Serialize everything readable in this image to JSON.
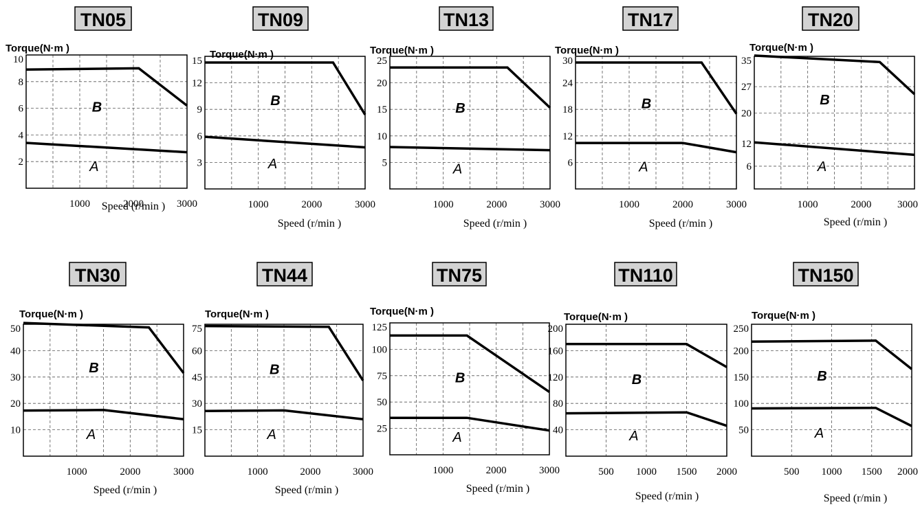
{
  "chart_data": [
    {
      "type": "line",
      "title": "TN05",
      "ylabel": "Torque(N·m )",
      "xlabel": "Speed (r/min )",
      "x_ticks": [
        1000,
        2000,
        3000
      ],
      "y_ticks": [
        2,
        4,
        6,
        8,
        10
      ],
      "xlim": [
        0,
        3000
      ],
      "ylim": [
        0,
        10
      ],
      "region_labels": {
        "upper": "B",
        "lower": "A"
      },
      "series": [
        {
          "values": [
            [
              0,
              8.9
            ],
            [
              2100,
              9.0
            ],
            [
              3000,
              6.2
            ]
          ]
        },
        {
          "values": [
            [
              0,
              3.4
            ],
            [
              3000,
              2.7
            ]
          ]
        }
      ]
    },
    {
      "type": "line",
      "title": "TN09",
      "ylabel": "Torque(N·m )",
      "xlabel": "Speed (r/min )",
      "x_ticks": [
        1000,
        2000,
        3000
      ],
      "y_ticks": [
        3,
        6,
        9,
        12,
        15
      ],
      "xlim": [
        0,
        3000
      ],
      "ylim": [
        0,
        15
      ],
      "region_labels": {
        "upper": "B",
        "lower": "A"
      },
      "series": [
        {
          "values": [
            [
              0,
              14.3
            ],
            [
              2400,
              14.3
            ],
            [
              3000,
              8.4
            ]
          ]
        },
        {
          "values": [
            [
              0,
              5.9
            ],
            [
              3000,
              4.7
            ]
          ]
        }
      ]
    },
    {
      "type": "line",
      "title": "TN13",
      "ylabel": "Torque(N·m )",
      "xlabel": "Speed (r/min )",
      "x_ticks": [
        1000,
        2000,
        3000
      ],
      "y_ticks": [
        5,
        10,
        15,
        20,
        25
      ],
      "xlim": [
        0,
        3000
      ],
      "ylim": [
        0,
        25
      ],
      "region_labels": {
        "upper": "B",
        "lower": "A"
      },
      "series": [
        {
          "values": [
            [
              0,
              22.9
            ],
            [
              2200,
              22.9
            ],
            [
              3000,
              15.3
            ]
          ]
        },
        {
          "values": [
            [
              0,
              7.9
            ],
            [
              3000,
              7.3
            ]
          ]
        }
      ]
    },
    {
      "type": "line",
      "title": "TN17",
      "ylabel": "Torque(N·m )",
      "xlabel": "Speed (r/min )",
      "x_ticks": [
        1000,
        2000,
        3000
      ],
      "y_ticks": [
        6,
        12,
        18,
        24,
        30
      ],
      "xlim": [
        0,
        3000
      ],
      "ylim": [
        0,
        30
      ],
      "region_labels": {
        "upper": "B",
        "lower": "A"
      },
      "series": [
        {
          "values": [
            [
              0,
              28.6
            ],
            [
              2350,
              28.6
            ],
            [
              3000,
              17.0
            ]
          ]
        },
        {
          "values": [
            [
              0,
              10.4
            ],
            [
              2000,
              10.4
            ],
            [
              3000,
              8.3
            ]
          ]
        }
      ]
    },
    {
      "type": "line",
      "title": "TN20",
      "ylabel": "Torque(N·m )",
      "xlabel": "Speed (r/min )",
      "x_ticks": [
        1000,
        2000,
        3000
      ],
      "y_ticks": [
        6,
        12,
        20,
        27,
        35
      ],
      "xlim": [
        0,
        3000
      ],
      "ylim": [
        0,
        35
      ],
      "region_labels": {
        "upper": "B",
        "lower": "A"
      },
      "series": [
        {
          "values": [
            [
              0,
              35.2
            ],
            [
              2350,
              33.5
            ],
            [
              3000,
              25.0
            ]
          ]
        },
        {
          "values": [
            [
              0,
              12.3
            ],
            [
              3000,
              9.0
            ]
          ]
        }
      ]
    },
    {
      "type": "line",
      "title": "TN30",
      "ylabel": "Torque(N·m )",
      "xlabel": "Speed (r/min )",
      "x_ticks": [
        1000,
        2000,
        3000
      ],
      "y_ticks": [
        10,
        20,
        30,
        40,
        50
      ],
      "xlim": [
        0,
        3000
      ],
      "ylim": [
        0,
        50
      ],
      "region_labels": {
        "upper": "B",
        "lower": "A"
      },
      "series": [
        {
          "values": [
            [
              0,
              50.5
            ],
            [
              2350,
              48.8
            ],
            [
              3000,
              31.5
            ]
          ]
        },
        {
          "values": [
            [
              0,
              17.3
            ],
            [
              1500,
              17.5
            ],
            [
              3000,
              14.0
            ]
          ]
        }
      ]
    },
    {
      "type": "line",
      "title": "TN44",
      "ylabel": "Torque(N·m )",
      "xlabel": "Speed (r/min )",
      "x_ticks": [
        1000,
        2000,
        3000
      ],
      "y_ticks": [
        15,
        30,
        45,
        60,
        75
      ],
      "xlim": [
        0,
        3000
      ],
      "ylim": [
        0,
        75
      ],
      "region_labels": {
        "upper": "B",
        "lower": "A"
      },
      "series": [
        {
          "values": [
            [
              0,
              74.0
            ],
            [
              2350,
              73.5
            ],
            [
              3000,
              43.0
            ]
          ]
        },
        {
          "values": [
            [
              0,
              25.7
            ],
            [
              1500,
              26.0
            ],
            [
              3000,
              21.0
            ]
          ]
        }
      ]
    },
    {
      "type": "line",
      "title": "TN75",
      "ylabel": "Torque(N·m )",
      "xlabel": "Speed (r/min )",
      "x_ticks": [
        1000,
        2000,
        3000
      ],
      "y_ticks": [
        25,
        50,
        75,
        100,
        125
      ],
      "xlim": [
        0,
        3000
      ],
      "ylim": [
        0,
        125
      ],
      "region_labels": {
        "upper": "B",
        "lower": "A"
      },
      "series": [
        {
          "values": [
            [
              0,
              113.0
            ],
            [
              1450,
              113.0
            ],
            [
              3000,
              59.5
            ]
          ]
        },
        {
          "values": [
            [
              0,
              35.0
            ],
            [
              1450,
              35.0
            ],
            [
              3000,
              23.0
            ]
          ]
        }
      ]
    },
    {
      "type": "line",
      "title": "TN110",
      "ylabel": "Torque(N·m )",
      "xlabel": "Speed (r/min )",
      "x_ticks": [
        500,
        1000,
        1500,
        2000
      ],
      "y_ticks": [
        40,
        80,
        120,
        160,
        200
      ],
      "xlim": [
        0,
        2000
      ],
      "ylim": [
        0,
        200
      ],
      "region_labels": {
        "upper": "B",
        "lower": "A"
      },
      "series": [
        {
          "values": [
            [
              0,
              170.0
            ],
            [
              1500,
              170.0
            ],
            [
              2000,
              135.0
            ]
          ]
        },
        {
          "values": [
            [
              0,
              65.0
            ],
            [
              1500,
              66.5
            ],
            [
              2000,
              46.0
            ]
          ]
        }
      ]
    },
    {
      "type": "line",
      "title": "TN150",
      "ylabel": "Torque(N·m )",
      "xlabel": "Speed (r/min )",
      "x_ticks": [
        500,
        1000,
        1500,
        2000
      ],
      "y_ticks": [
        50,
        100,
        150,
        200,
        250
      ],
      "xlim": [
        0,
        2000
      ],
      "ylim": [
        0,
        250
      ],
      "region_labels": {
        "upper": "B",
        "lower": "A"
      },
      "series": [
        {
          "values": [
            [
              0,
              217.0
            ],
            [
              1550,
              219.0
            ],
            [
              2000,
              165.0
            ]
          ]
        },
        {
          "values": [
            [
              0,
              90.5
            ],
            [
              1550,
              91.5
            ],
            [
              2000,
              57.0
            ]
          ]
        }
      ]
    }
  ]
}
